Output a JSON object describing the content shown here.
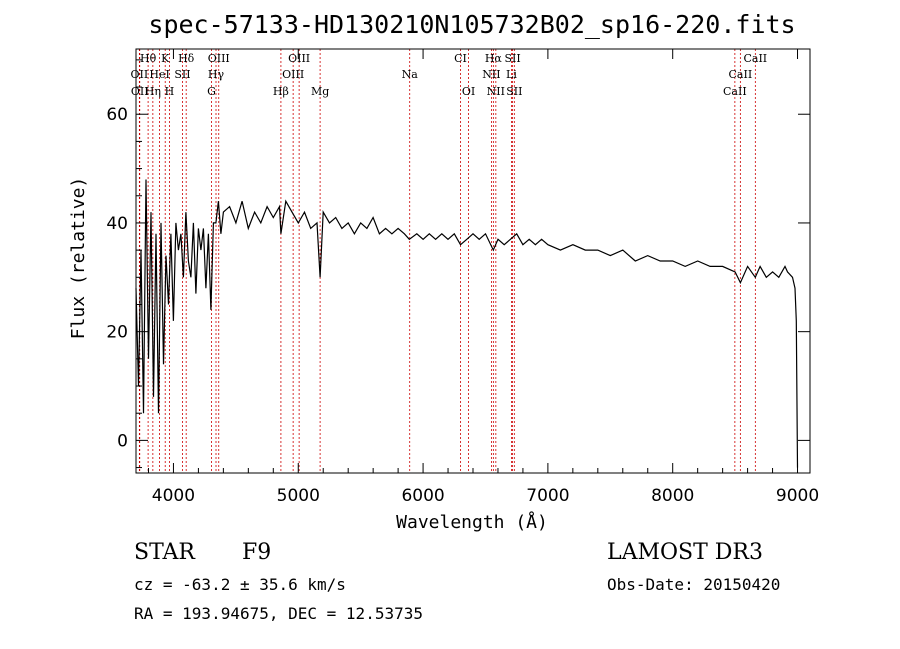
{
  "chart_data": {
    "type": "line",
    "title": "spec-57133-HD130210N105732B02_sp16-220.fits",
    "xlabel": "Wavelength (Å)",
    "ylabel": "Flux (relative)",
    "xlim": [
      3700,
      9100
    ],
    "ylim": [
      -6,
      72
    ],
    "xticks": [
      4000,
      5000,
      6000,
      7000,
      8000,
      9000
    ],
    "yticks": [
      0,
      20,
      40,
      60
    ],
    "series": [
      {
        "name": "spectrum",
        "x": [
          3700,
          3720,
          3740,
          3760,
          3780,
          3800,
          3820,
          3840,
          3860,
          3880,
          3900,
          3920,
          3940,
          3960,
          3980,
          4000,
          4020,
          4040,
          4060,
          4080,
          4100,
          4120,
          4140,
          4160,
          4180,
          4200,
          4220,
          4240,
          4260,
          4280,
          4300,
          4320,
          4340,
          4360,
          4380,
          4400,
          4450,
          4500,
          4550,
          4600,
          4650,
          4700,
          4750,
          4800,
          4850,
          4861,
          4900,
          4950,
          5000,
          5050,
          5100,
          5150,
          5175,
          5200,
          5250,
          5300,
          5350,
          5400,
          5450,
          5500,
          5550,
          5600,
          5650,
          5700,
          5750,
          5800,
          5850,
          5890,
          5950,
          6000,
          6050,
          6100,
          6150,
          6200,
          6250,
          6300,
          6350,
          6400,
          6450,
          6500,
          6563,
          6600,
          6650,
          6700,
          6750,
          6800,
          6850,
          6900,
          6950,
          7000,
          7100,
          7200,
          7300,
          7400,
          7500,
          7600,
          7700,
          7800,
          7900,
          8000,
          8100,
          8200,
          8300,
          8400,
          8500,
          8542,
          8600,
          8662,
          8700,
          8750,
          8800,
          8850,
          8900,
          8920,
          8960,
          8980,
          8990,
          9000
        ],
        "y": [
          28,
          10,
          35,
          5,
          48,
          15,
          42,
          8,
          38,
          5,
          40,
          14,
          34,
          25,
          38,
          22,
          40,
          35,
          38,
          30,
          42,
          33,
          30,
          40,
          27,
          39,
          35,
          39,
          28,
          38,
          24,
          40,
          40,
          44,
          38,
          42,
          43,
          40,
          44,
          39,
          42,
          40,
          43,
          41,
          43,
          38,
          44,
          42,
          40,
          42,
          39,
          40,
          30,
          42,
          40,
          41,
          39,
          40,
          38,
          40,
          39,
          41,
          38,
          39,
          38,
          39,
          38,
          37,
          38,
          37,
          38,
          37,
          38,
          37,
          38,
          36,
          37,
          38,
          37,
          38,
          35,
          37,
          36,
          37,
          38,
          36,
          37,
          36,
          37,
          36,
          35,
          36,
          35,
          35,
          34,
          35,
          33,
          34,
          33,
          33,
          32,
          33,
          32,
          32,
          31,
          29,
          32,
          30,
          32,
          30,
          31,
          30,
          32,
          31,
          30,
          28,
          22,
          -5
        ]
      }
    ],
    "emission_lines": [
      {
        "label": "Hθ",
        "wavelength": 3797,
        "row": 1
      },
      {
        "label": "K",
        "wavelength": 3934,
        "row": 1
      },
      {
        "label": "Hδ",
        "wavelength": 4102,
        "row": 1
      },
      {
        "label": "OIII",
        "wavelength": 4363,
        "row": 1
      },
      {
        "label": "OIII",
        "wavelength": 5007,
        "row": 1
      },
      {
        "label": "CI",
        "wavelength": 6300,
        "row": 1
      },
      {
        "label": "Hα",
        "wavelength": 6563,
        "row": 1
      },
      {
        "label": "SII",
        "wavelength": 6717,
        "row": 1
      },
      {
        "label": "CaII",
        "wavelength": 8662,
        "row": 1
      },
      {
        "label": "OII",
        "wavelength": 3727,
        "row": 2
      },
      {
        "label": "HeI",
        "wavelength": 3889,
        "row": 2
      },
      {
        "label": "SII",
        "wavelength": 4072,
        "row": 2
      },
      {
        "label": "Hγ",
        "wavelength": 4341,
        "row": 2
      },
      {
        "label": "OIII",
        "wavelength": 4959,
        "row": 2
      },
      {
        "label": "Na",
        "wavelength": 5893,
        "row": 2
      },
      {
        "label": "NII",
        "wavelength": 6548,
        "row": 2
      },
      {
        "label": "Li",
        "wavelength": 6708,
        "row": 2
      },
      {
        "label": "CaII",
        "wavelength": 8542,
        "row": 2
      },
      {
        "label": "OII",
        "wavelength": 3730,
        "row": 3
      },
      {
        "label": "Hη",
        "wavelength": 3835,
        "row": 3
      },
      {
        "label": "H",
        "wavelength": 3968,
        "row": 3
      },
      {
        "label": "G",
        "wavelength": 4305,
        "row": 3
      },
      {
        "label": "Hβ",
        "wavelength": 4861,
        "row": 3
      },
      {
        "label": "Mg",
        "wavelength": 5175,
        "row": 3
      },
      {
        "label": "OI",
        "wavelength": 6364,
        "row": 3
      },
      {
        "label": "NII",
        "wavelength": 6583,
        "row": 3
      },
      {
        "label": "SII",
        "wavelength": 6731,
        "row": 3
      },
      {
        "label": "CaII",
        "wavelength": 8498,
        "row": 3
      }
    ],
    "colors": {
      "spectrum": "#000000",
      "lines": "#cc0000",
      "axes": "#000000"
    }
  },
  "info": {
    "class": "STAR",
    "subclass": "F9",
    "survey": "LAMOST DR3",
    "cz": "cz = -63.2 ± 35.6 km/s",
    "obs_date": "Obs-Date: 20150420",
    "coords": "RA = 193.94675, DEC =  12.53735"
  }
}
